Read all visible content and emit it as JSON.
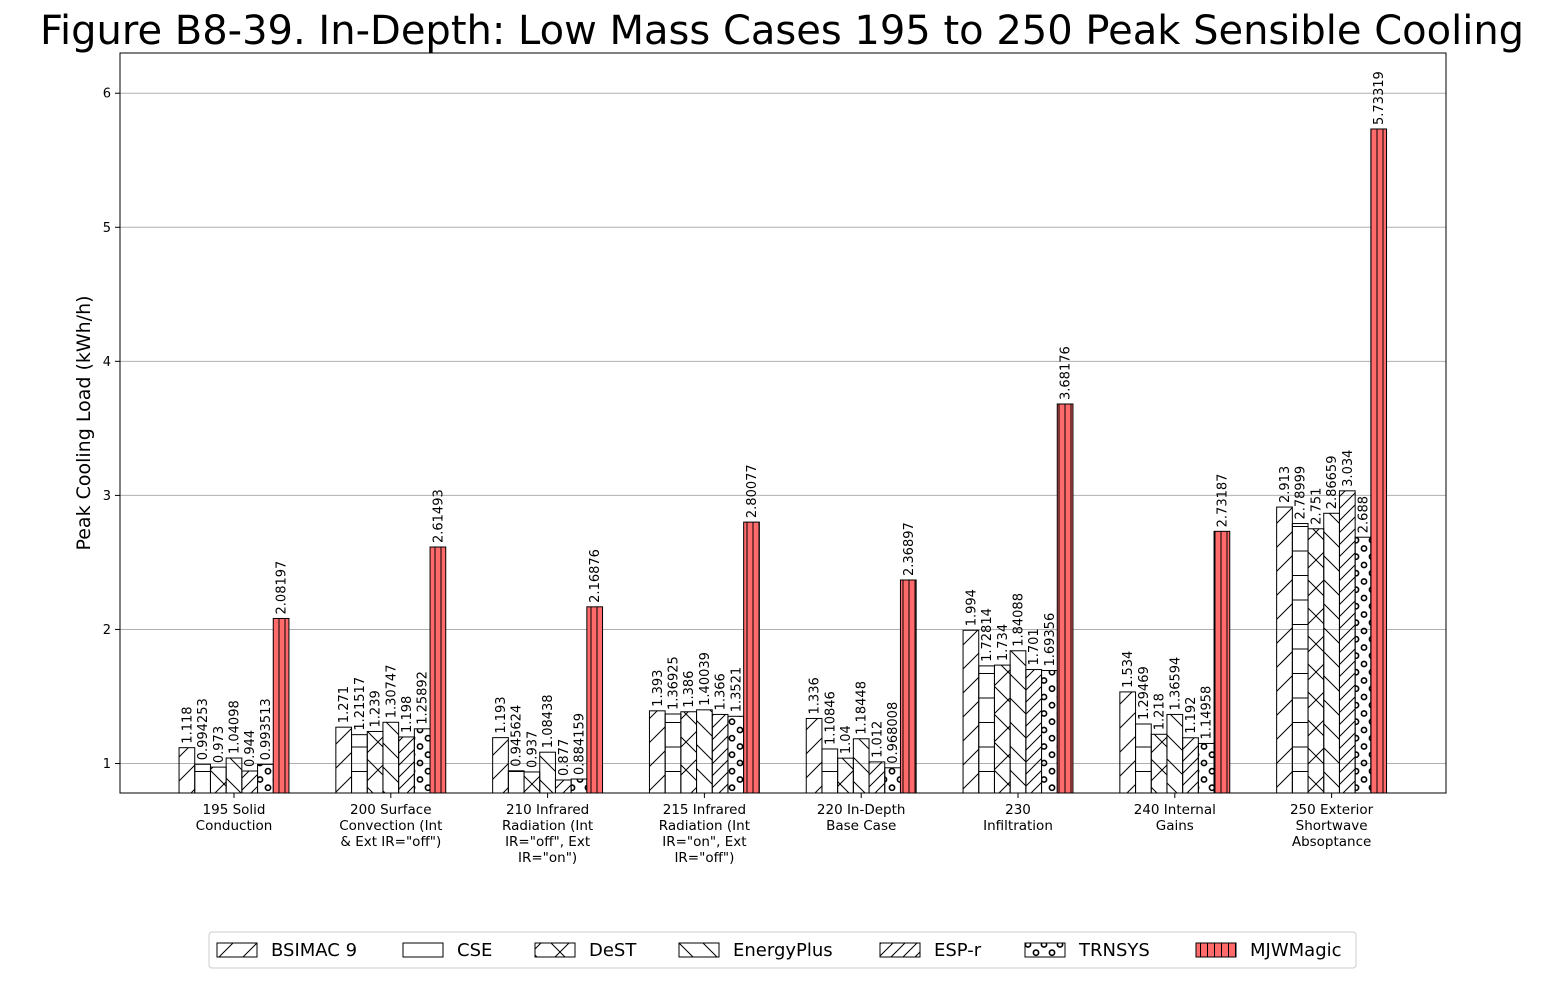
{
  "chart_data": {
    "type": "bar",
    "title": "Figure B8-39. In-Depth: Low Mass Cases 195 to 250 Peak Sensible Cooling",
    "ylabel": "Peak Cooling Load (kWh/h)",
    "xlabel": "",
    "ylim": [
      0.78,
      6.3
    ],
    "yticks": [
      1,
      2,
      3,
      4,
      5,
      6
    ],
    "yticks_labels": [
      "1",
      "2",
      "3",
      "4",
      "5",
      "6"
    ],
    "grid": "y",
    "legend": "bottom-center",
    "categories": [
      [
        "195 Solid",
        "Conduction"
      ],
      [
        "200 Surface",
        "Convection (Int",
        "& Ext IR=\"off\")"
      ],
      [
        "210 Infrared",
        "Radiation (Int",
        "IR=\"off\", Ext",
        "IR=\"on\")"
      ],
      [
        "215 Infrared",
        "Radiation (Int",
        "IR=\"on\", Ext",
        "IR=\"off\")"
      ],
      [
        "220 In-Depth",
        "Base Case"
      ],
      [
        "230",
        "Infiltration"
      ],
      [
        "240 Internal",
        "Gains"
      ],
      [
        "250 Exterior",
        "Shortwave",
        "Absoptance"
      ]
    ],
    "series": [
      {
        "name": "BSIMAC 9",
        "pattern": "diag",
        "color": "#ffffff",
        "values": [
          1.118,
          1.271,
          1.193,
          1.393,
          1.336,
          1.994,
          1.534,
          2.913
        ],
        "labels": [
          "1.118",
          "1.271",
          "1.193",
          "1.393",
          "1.336",
          "1.994",
          "1.534",
          "2.913"
        ]
      },
      {
        "name": "CSE",
        "pattern": "hlines",
        "color": "#ffffff",
        "values": [
          0.994253,
          1.21517,
          0.945624,
          1.36925,
          1.10846,
          1.72814,
          1.29469,
          2.78999
        ],
        "labels": [
          "0.994253",
          "1.21517",
          "0.945624",
          "1.36925",
          "1.10846",
          "1.72814",
          "1.29469",
          "2.78999"
        ]
      },
      {
        "name": "DeST",
        "pattern": "cross",
        "color": "#ffffff",
        "values": [
          0.973,
          1.239,
          0.937,
          1.386,
          1.04,
          1.734,
          1.218,
          2.751
        ],
        "labels": [
          "0.973",
          "1.239",
          "0.937",
          "1.386",
          "1.04",
          "1.734",
          "1.218",
          "2.751"
        ]
      },
      {
        "name": "EnergyPlus",
        "pattern": "backdiag",
        "color": "#ffffff",
        "values": [
          1.04098,
          1.30747,
          1.08438,
          1.40039,
          1.18448,
          1.84088,
          1.36594,
          2.86659
        ],
        "labels": [
          "1.04098",
          "1.30747",
          "1.08438",
          "1.40039",
          "1.18448",
          "1.84088",
          "1.36594",
          "2.86659"
        ]
      },
      {
        "name": "ESP-r",
        "pattern": "densediag",
        "color": "#ffffff",
        "values": [
          0.944,
          1.198,
          0.877,
          1.366,
          1.012,
          1.701,
          1.192,
          3.034
        ],
        "labels": [
          "0.944",
          "1.198",
          "0.877",
          "1.366",
          "1.012",
          "1.701",
          "1.192",
          "3.034"
        ]
      },
      {
        "name": "TRNSYS",
        "pattern": "circles",
        "color": "#ffffff",
        "values": [
          0.993513,
          1.25892,
          0.884159,
          1.3521,
          0.968008,
          1.69356,
          1.14958,
          2.688
        ],
        "labels": [
          "0.993513",
          "1.25892",
          "0.884159",
          "1.3521",
          "0.968008",
          "1.69356",
          "1.14958",
          "2.688"
        ]
      },
      {
        "name": "MJWMagic",
        "pattern": "vlines",
        "color": "#ff6b6b",
        "values": [
          2.08197,
          2.61493,
          2.16876,
          2.80077,
          2.36897,
          3.68176,
          2.73187,
          5.73319
        ],
        "labels": [
          "2.08197",
          "2.61493",
          "2.16876",
          "2.80077",
          "2.36897",
          "3.68176",
          "2.73187",
          "5.73319"
        ]
      }
    ]
  }
}
